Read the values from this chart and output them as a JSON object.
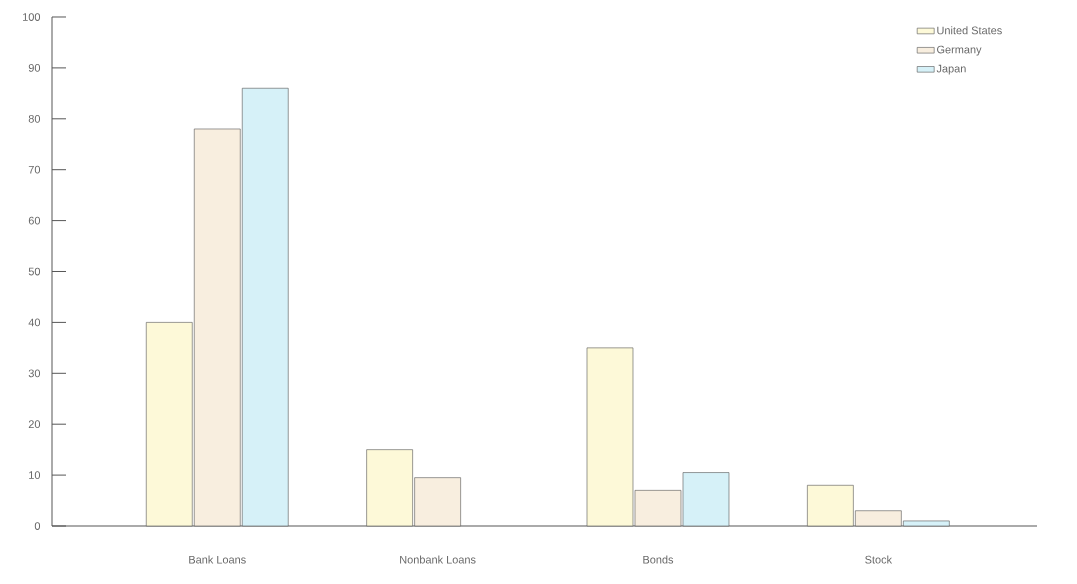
{
  "chart_data": {
    "type": "bar",
    "categories": [
      "Bank Loans",
      "Nonbank Loans",
      "Bonds",
      "Stock"
    ],
    "series": [
      {
        "name": "United States",
        "color": "#fdf9d8",
        "values": [
          40,
          15,
          35,
          8
        ]
      },
      {
        "name": "Germany",
        "color": "#f8eedf",
        "values": [
          78,
          9.5,
          7,
          3
        ]
      },
      {
        "name": "Japan",
        "color": "#d6f1f8",
        "values": [
          86,
          null,
          10.5,
          1
        ]
      }
    ],
    "ylim": [
      0,
      100
    ],
    "yticks": [
      0,
      10,
      20,
      30,
      40,
      50,
      60,
      70,
      80,
      90,
      100
    ],
    "grid": false,
    "legend": "top right"
  }
}
